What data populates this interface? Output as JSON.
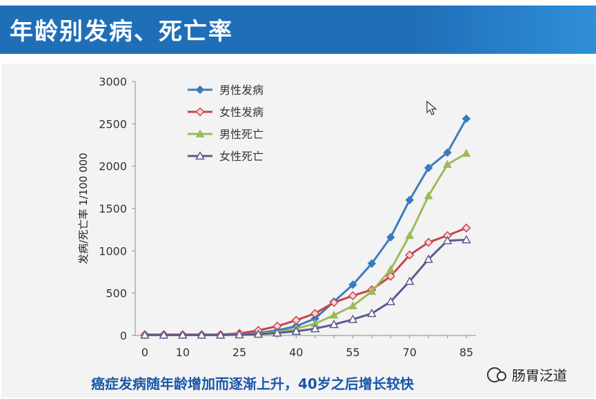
{
  "title": "年龄别发病、死亡率",
  "caption": "癌症发病随年龄增加而逐渐上升，40岁之后增长较快",
  "watermark": "肠胃泛道",
  "colors": {
    "title_bg": "#1f6fb8",
    "caption": "#1a56a8"
  },
  "chart_data": {
    "type": "line",
    "ylabel": "发病/死亡率    1/100 000",
    "xlabel": "",
    "ylim": [
      0,
      3000
    ],
    "y_ticks": [
      0,
      500,
      1000,
      1500,
      2000,
      2500,
      3000
    ],
    "x_tick_labels": [
      "0",
      "10",
      "25",
      "40",
      "55",
      "70",
      "85"
    ],
    "x_tick_values": [
      0,
      10,
      25,
      40,
      55,
      70,
      85
    ],
    "legend_position": "top-left",
    "grid": false,
    "x": [
      0,
      5,
      10,
      15,
      20,
      25,
      30,
      35,
      40,
      45,
      50,
      55,
      60,
      65,
      70,
      75,
      80,
      85
    ],
    "series": [
      {
        "name": "男性发病",
        "color": "#3b7bbf",
        "marker": "diamond",
        "values": [
          10,
          10,
          10,
          10,
          10,
          15,
          30,
          60,
          110,
          200,
          400,
          600,
          850,
          1160,
          1600,
          1980,
          2160,
          2560
        ]
      },
      {
        "name": "女性发病",
        "color": "#c8444a",
        "marker": "diamond-open",
        "values": [
          10,
          10,
          10,
          10,
          10,
          25,
          60,
          110,
          180,
          260,
          390,
          470,
          540,
          700,
          950,
          1100,
          1180,
          1270
        ]
      },
      {
        "name": "男性死亡",
        "color": "#9bbb59",
        "marker": "triangle",
        "values": [
          5,
          5,
          5,
          5,
          5,
          10,
          20,
          40,
          80,
          140,
          240,
          350,
          520,
          780,
          1180,
          1650,
          2020,
          2150
        ]
      },
      {
        "name": "女性死亡",
        "color": "#5b5a8f",
        "marker": "triangle-open",
        "values": [
          5,
          5,
          5,
          5,
          5,
          8,
          15,
          30,
          50,
          80,
          130,
          190,
          260,
          400,
          640,
          900,
          1120,
          1130
        ]
      }
    ]
  }
}
